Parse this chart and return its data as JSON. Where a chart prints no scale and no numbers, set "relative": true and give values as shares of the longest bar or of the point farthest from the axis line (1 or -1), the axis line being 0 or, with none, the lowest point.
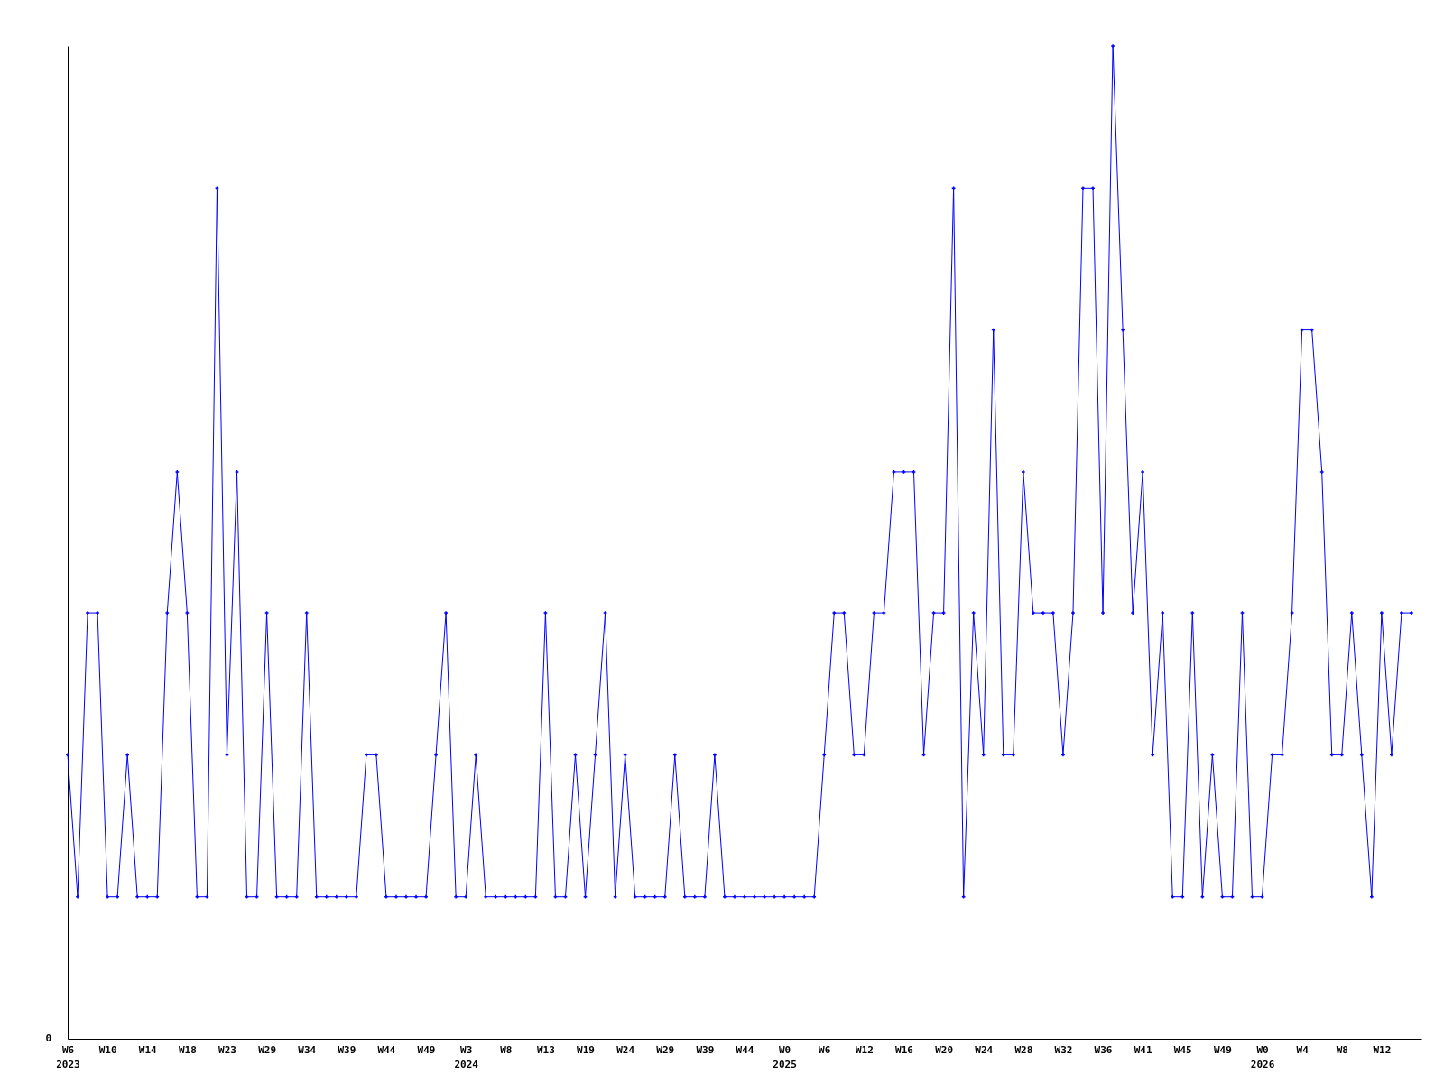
{
  "chart_data": {
    "type": "line",
    "relative": true,
    "annotations": [
      "0"
    ],
    "marker": "cross",
    "grid": false,
    "categories": [
      "W6\n2023",
      null,
      null,
      null,
      "W10",
      null,
      null,
      null,
      "W14",
      null,
      null,
      null,
      "W18",
      null,
      null,
      null,
      "W23",
      null,
      null,
      null,
      "W29",
      null,
      null,
      null,
      "W34",
      null,
      null,
      null,
      "W39",
      null,
      null,
      null,
      "W44",
      null,
      null,
      null,
      "W49",
      null,
      null,
      null,
      "W3\n2024",
      null,
      null,
      null,
      "W8",
      null,
      null,
      null,
      "W13",
      null,
      null,
      null,
      "W19",
      null,
      null,
      null,
      "W24",
      null,
      null,
      null,
      "W29",
      null,
      null,
      null,
      "W39",
      null,
      null,
      null,
      "W44",
      null,
      null,
      null,
      "W0\n2025",
      null,
      null,
      null,
      "W6",
      null,
      null,
      null,
      "W12",
      null,
      null,
      null,
      "W16",
      null,
      null,
      null,
      "W20",
      null,
      null,
      null,
      "W24",
      null,
      null,
      null,
      "W28",
      null,
      null,
      null,
      "W32",
      null,
      null,
      null,
      "W36",
      null,
      null,
      null,
      "W41",
      null,
      null,
      null,
      "W45",
      null,
      null,
      null,
      "W49",
      null,
      null,
      null,
      "W0\n2026",
      null,
      null,
      null,
      "W4",
      null,
      null,
      null,
      "W8",
      null,
      null,
      null,
      "W12",
      null,
      null,
      null
    ],
    "series": [
      {
        "color": "#0000ff",
        "values": [
          0.286,
          0.143,
          0.429,
          0.429,
          0.143,
          0.143,
          0.286,
          0.143,
          0.143,
          0.143,
          0.429,
          0.571,
          0.429,
          0.143,
          0.143,
          0.857,
          0.286,
          0.571,
          0.143,
          0.143,
          0.429,
          0.143,
          0.143,
          0.143,
          0.429,
          0.143,
          0.143,
          0.143,
          0.143,
          0.143,
          0.286,
          0.286,
          0.143,
          0.143,
          0.143,
          0.143,
          0.143,
          0.286,
          0.429,
          0.143,
          0.143,
          0.286,
          0.143,
          0.143,
          0.143,
          0.143,
          0.143,
          0.143,
          0.429,
          0.143,
          0.143,
          0.286,
          0.143,
          0.286,
          0.429,
          0.143,
          0.286,
          0.143,
          0.143,
          0.143,
          0.143,
          0.286,
          0.143,
          0.143,
          0.143,
          0.286,
          0.143,
          0.143,
          0.143,
          0.143,
          0.143,
          0.143,
          0.143,
          0.143,
          0.143,
          0.143,
          0.286,
          0.429,
          0.429,
          0.286,
          0.286,
          0.429,
          0.429,
          0.571,
          0.571,
          0.571,
          0.286,
          0.429,
          0.429,
          0.857,
          0.143,
          0.429,
          0.286,
          0.714,
          0.286,
          0.286,
          0.571,
          0.429,
          0.429,
          0.429,
          0.286,
          0.429,
          0.857,
          0.857,
          0.429,
          1,
          0.714,
          0.429,
          0.571,
          0.286,
          0.429,
          0.143,
          0.143,
          0.429,
          0.143,
          0.286,
          0.143,
          0.143,
          0.429,
          0.143,
          0.143,
          0.286,
          0.286,
          0.429,
          0.714,
          0.714,
          0.571,
          0.286,
          0.286,
          0.429,
          0.286,
          0.143,
          0.429,
          0.286,
          0.429,
          0.429
        ]
      }
    ]
  }
}
